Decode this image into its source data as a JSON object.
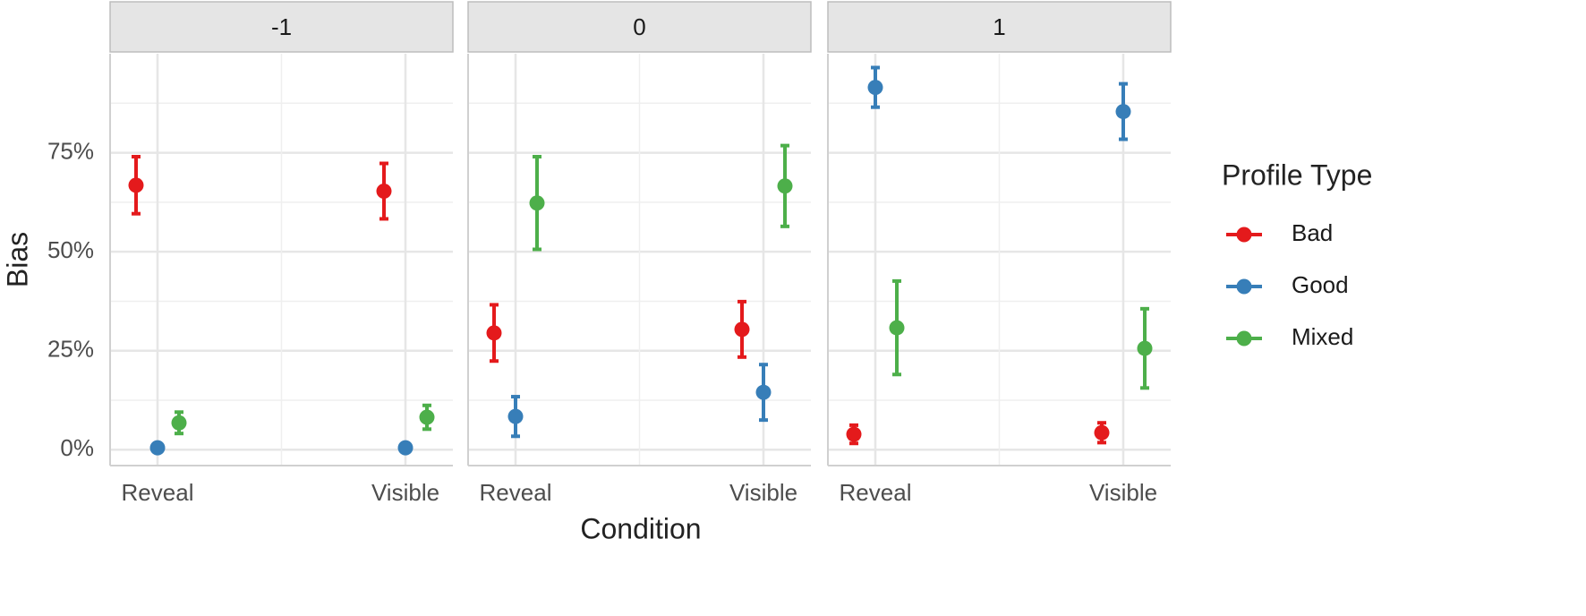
{
  "chart_data": {
    "type": "point-errorbar",
    "ylabel": "Bias",
    "xlabel": "Condition",
    "legend_title": "Profile Type",
    "categories": [
      "Reveal",
      "Visible"
    ],
    "ylim": [
      -4,
      100
    ],
    "yticks": [
      {
        "value": 0,
        "label": "0%"
      },
      {
        "value": 25,
        "label": "25%"
      },
      {
        "value": 50,
        "label": "50%"
      },
      {
        "value": 75,
        "label": "75%"
      }
    ],
    "grid": true,
    "series": [
      {
        "name": "Bad",
        "color": "#e41a1c"
      },
      {
        "name": "Good",
        "color": "#377eb8"
      },
      {
        "name": "Mixed",
        "color": "#4daf4a"
      }
    ],
    "facets": [
      {
        "title": "-1",
        "series": [
          {
            "values": [
              66.8,
              65.3
            ],
            "errors": [
              7.2,
              7
            ]
          },
          {
            "values": [
              0.5,
              0.5
            ],
            "errors": [
              0,
              0
            ]
          },
          {
            "values": [
              6.8,
              8.2
            ],
            "errors": [
              2.7,
              3
            ]
          }
        ]
      },
      {
        "title": "0",
        "series": [
          {
            "values": [
              29.5,
              30.4
            ],
            "errors": [
              7.1,
              7
            ]
          },
          {
            "values": [
              8.4,
              14.5
            ],
            "errors": [
              5,
              7
            ]
          },
          {
            "values": [
              62.3,
              66.6
            ],
            "errors": [
              11.7,
              10.2
            ]
          }
        ]
      },
      {
        "title": "1",
        "series": [
          {
            "values": [
              3.9,
              4.3
            ],
            "errors": [
              2.3,
              2.5
            ]
          },
          {
            "values": [
              91.5,
              85.4
            ],
            "errors": [
              5,
              7
            ]
          },
          {
            "values": [
              30.8,
              25.6
            ],
            "errors": [
              11.8,
              10
            ]
          }
        ]
      }
    ]
  }
}
